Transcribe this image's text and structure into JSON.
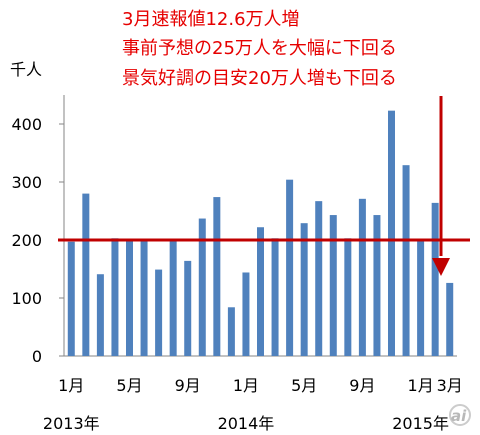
{
  "chart_data": {
    "type": "bar",
    "ylabel": "千人",
    "ylim": [
      0,
      450
    ],
    "yticks": [
      0,
      100,
      200,
      300,
      400
    ],
    "months": [
      "2013-01",
      "2013-02",
      "2013-03",
      "2013-04",
      "2013-05",
      "2013-06",
      "2013-07",
      "2013-08",
      "2013-09",
      "2013-10",
      "2013-11",
      "2013-12",
      "2014-01",
      "2014-02",
      "2014-03",
      "2014-04",
      "2014-05",
      "2014-06",
      "2014-07",
      "2014-08",
      "2014-09",
      "2014-10",
      "2014-11",
      "2014-12",
      "2015-01",
      "2015-02",
      "2015-03"
    ],
    "values": [
      197,
      280,
      141,
      203,
      199,
      201,
      149,
      202,
      164,
      237,
      274,
      84,
      144,
      222,
      203,
      304,
      229,
      267,
      243,
      203,
      271,
      243,
      423,
      329,
      201,
      264,
      126
    ],
    "month_labels": [
      "1月",
      "5月",
      "9月",
      "1月",
      "5月",
      "9月",
      "1月",
      "3月"
    ],
    "year_labels": [
      "2013年",
      "2014年",
      "2015年"
    ],
    "reference_value": 200,
    "annotations": [
      "3月速報値12.6万人増",
      "事前予想の25万人を大幅に下回る",
      "景気好調の目安20万人増も下回る"
    ],
    "bar_color": "#4f81bd",
    "line_color": "#c00000",
    "text_color": "#e60000",
    "grid": false
  },
  "watermark": "ai"
}
